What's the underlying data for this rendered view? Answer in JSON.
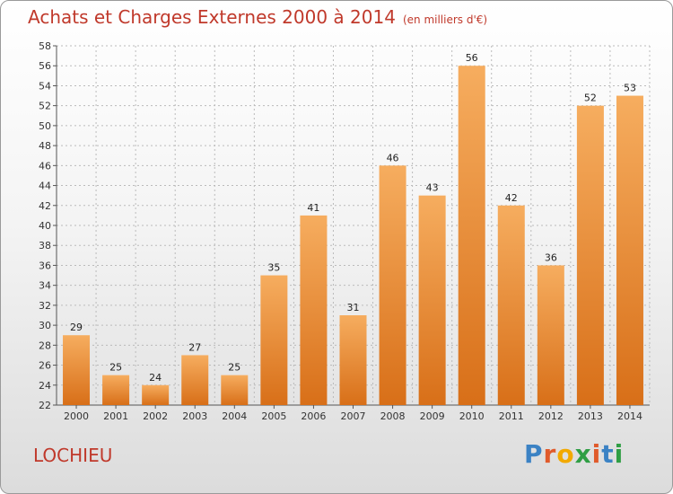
{
  "header": {
    "title": "Achats et Charges Externes 2000 à 2014",
    "subtitle": "(en milliers d'€)"
  },
  "footer": {
    "commune": "LOCHIEU",
    "logo_text": "Proxiti"
  },
  "colors": {
    "title": "#c0392b",
    "bar_top": "#f6ad5f",
    "bar_bottom": "#d86f18",
    "grid": "#bbbbbb"
  },
  "chart_data": {
    "type": "bar",
    "categories": [
      "2000",
      "2001",
      "2002",
      "2003",
      "2004",
      "2005",
      "2006",
      "2007",
      "2008",
      "2009",
      "2010",
      "2011",
      "2012",
      "2013",
      "2014"
    ],
    "values": [
      29,
      25,
      24,
      27,
      25,
      35,
      41,
      31,
      46,
      43,
      56,
      42,
      36,
      52,
      53
    ],
    "title": "Achats et Charges Externes 2000 à 2014",
    "subtitle": "(en milliers d'€)",
    "xlabel": "",
    "ylabel": "",
    "ylim": [
      22,
      58
    ],
    "yticks": [
      22,
      24,
      26,
      28,
      30,
      32,
      34,
      36,
      38,
      40,
      42,
      44,
      46,
      48,
      50,
      52,
      54,
      56,
      58
    ],
    "grid": true,
    "data_labels": true
  }
}
